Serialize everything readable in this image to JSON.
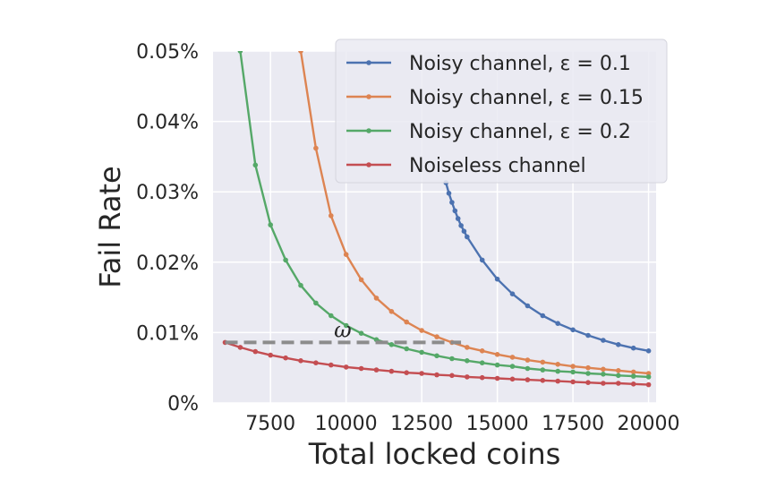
{
  "chart_data": {
    "type": "line",
    "xlabel": "Total locked coins",
    "ylabel": "Fail Rate",
    "xlim": [
      5600,
      20250
    ],
    "ylim": [
      0,
      0.05
    ],
    "x_ticks": [
      7500,
      10000,
      12500,
      15000,
      17500,
      20000
    ],
    "x_tick_labels": [
      "7500",
      "10000",
      "12500",
      "15000",
      "17500",
      "20000"
    ],
    "y_ticks": [
      0,
      0.01,
      0.02,
      0.03,
      0.04,
      0.05
    ],
    "y_tick_labels": [
      "0%",
      "0.01%",
      "0.02%",
      "0.03%",
      "0.04%",
      "0.05%"
    ],
    "grid": true,
    "legend_position": "top-right",
    "series": [
      {
        "name": "Noisy channel, ε = 0.1",
        "color": "#4c72b0",
        "points": [
          [
            13300,
            0.0313
          ],
          [
            13400,
            0.0298
          ],
          [
            13500,
            0.0285
          ],
          [
            13600,
            0.0273
          ],
          [
            13700,
            0.0262
          ],
          [
            13800,
            0.0252
          ],
          [
            13900,
            0.0244
          ],
          [
            14000,
            0.0236
          ],
          [
            14500,
            0.0203
          ],
          [
            15000,
            0.0176
          ],
          [
            15500,
            0.0155
          ],
          [
            16000,
            0.0138
          ],
          [
            16500,
            0.0124
          ],
          [
            17000,
            0.0113
          ],
          [
            17500,
            0.0104
          ],
          [
            18000,
            0.0096
          ],
          [
            18500,
            0.0089
          ],
          [
            19000,
            0.0083
          ],
          [
            19500,
            0.0078
          ],
          [
            20000,
            0.0074
          ]
        ]
      },
      {
        "name": "Noisy channel, ε = 0.15",
        "color": "#dd8452",
        "points": [
          [
            8500,
            0.05
          ],
          [
            9000,
            0.0362
          ],
          [
            9500,
            0.0266
          ],
          [
            10000,
            0.0211
          ],
          [
            10500,
            0.0175
          ],
          [
            11000,
            0.0149
          ],
          [
            11500,
            0.013
          ],
          [
            12000,
            0.0115
          ],
          [
            12500,
            0.0103
          ],
          [
            13000,
            0.0094
          ],
          [
            13500,
            0.0086
          ],
          [
            14000,
            0.0079
          ],
          [
            14500,
            0.0074
          ],
          [
            15000,
            0.0069
          ],
          [
            15500,
            0.0065
          ],
          [
            16000,
            0.0061
          ],
          [
            16500,
            0.0058
          ],
          [
            17000,
            0.0055
          ],
          [
            17500,
            0.0052
          ],
          [
            18000,
            0.005
          ],
          [
            18500,
            0.0048
          ],
          [
            19000,
            0.0046
          ],
          [
            19500,
            0.0044
          ],
          [
            20000,
            0.0042
          ]
        ]
      },
      {
        "name": "Noisy channel, ε = 0.2",
        "color": "#55a868",
        "points": [
          [
            6500,
            0.05
          ],
          [
            7000,
            0.0338
          ],
          [
            7500,
            0.0253
          ],
          [
            8000,
            0.0203
          ],
          [
            8500,
            0.0167
          ],
          [
            9000,
            0.0142
          ],
          [
            9500,
            0.0124
          ],
          [
            10000,
            0.011
          ],
          [
            10500,
            0.0099
          ],
          [
            11000,
            0.009
          ],
          [
            11500,
            0.0083
          ],
          [
            12000,
            0.0077
          ],
          [
            12500,
            0.0072
          ],
          [
            13000,
            0.0067
          ],
          [
            13500,
            0.0063
          ],
          [
            14000,
            0.006
          ],
          [
            14500,
            0.0057
          ],
          [
            15000,
            0.0054
          ],
          [
            15500,
            0.0052
          ],
          [
            16000,
            0.0049
          ],
          [
            16500,
            0.0047
          ],
          [
            17000,
            0.0045
          ],
          [
            17500,
            0.0044
          ],
          [
            18000,
            0.0042
          ],
          [
            18500,
            0.0041
          ],
          [
            19000,
            0.0039
          ],
          [
            19500,
            0.0038
          ],
          [
            20000,
            0.0037
          ]
        ]
      },
      {
        "name": "Noiseless channel",
        "color": "#c44e52",
        "points": [
          [
            6000,
            0.0086
          ],
          [
            6500,
            0.0079
          ],
          [
            7000,
            0.0073
          ],
          [
            7500,
            0.0068
          ],
          [
            8000,
            0.0064
          ],
          [
            8500,
            0.006
          ],
          [
            9000,
            0.0057
          ],
          [
            9500,
            0.0054
          ],
          [
            10000,
            0.0051
          ],
          [
            10500,
            0.0049
          ],
          [
            11000,
            0.0047
          ],
          [
            11500,
            0.0045
          ],
          [
            12000,
            0.0043
          ],
          [
            12500,
            0.0042
          ],
          [
            13000,
            0.004
          ],
          [
            13500,
            0.0039
          ],
          [
            14000,
            0.0037
          ],
          [
            14500,
            0.0036
          ],
          [
            15000,
            0.0035
          ],
          [
            15500,
            0.0034
          ],
          [
            16000,
            0.0033
          ],
          [
            16500,
            0.0032
          ],
          [
            17000,
            0.0031
          ],
          [
            17500,
            0.003
          ],
          [
            18000,
            0.0029
          ],
          [
            18500,
            0.0028
          ],
          [
            19000,
            0.0028
          ],
          [
            19500,
            0.0027
          ],
          [
            20000,
            0.0026
          ]
        ]
      }
    ],
    "annotations": [
      {
        "type": "dashed-hline",
        "label": "ω",
        "y": 0.0086,
        "x_range": [
          6000,
          13800
        ],
        "color": "#8c8c8c"
      }
    ]
  }
}
